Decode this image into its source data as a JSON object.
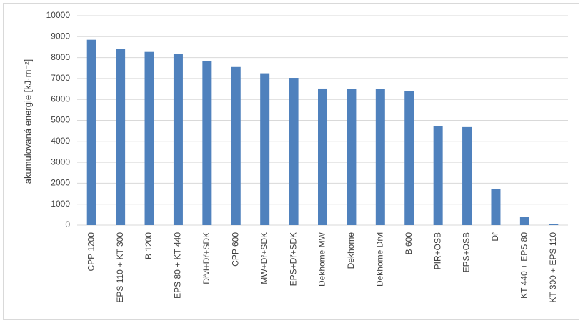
{
  "chart_data": {
    "type": "bar",
    "y_label": "akumulovaná energie [kJ·m⁻²]",
    "categories": [
      "CPP 1200",
      "EPS 110 + KT 300",
      "B 1200",
      "EPS 80 + KT 440",
      "Dřvl+Dř+SDK",
      "CPP 600",
      "MW+Dř+SDK",
      "EPS+Dř+SDK",
      "Dekhome MW",
      "Dekhome",
      "Dekhome Dřvl",
      "B 600",
      "PIR+OSB",
      "EPS+OSB",
      "Dř",
      "KT 440 + EPS 80",
      "KT 300 + EPS 110"
    ],
    "values": [
      8850,
      8420,
      8270,
      8170,
      7850,
      7550,
      7250,
      7030,
      6520,
      6510,
      6500,
      6400,
      4720,
      4680,
      1730,
      400,
      50
    ],
    "color": "#4f81bd",
    "ylim": [
      0,
      10000
    ],
    "yticks": [
      0,
      1000,
      2000,
      3000,
      4000,
      5000,
      6000,
      7000,
      8000,
      9000,
      10000
    ],
    "grid": true
  }
}
